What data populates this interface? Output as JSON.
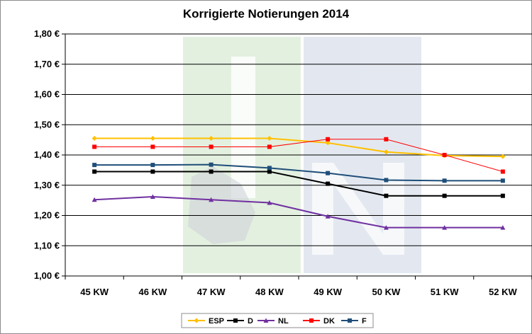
{
  "chart_data": {
    "type": "line",
    "title": "Korrigierte Notierungen 2014",
    "xlabel": "",
    "ylabel": "",
    "categories": [
      "45 KW",
      "46 KW",
      "47 KW",
      "48 KW",
      "49 KW",
      "50 KW",
      "51 KW",
      "52 KW"
    ],
    "ylim": [
      1.0,
      1.8
    ],
    "yticks": [
      1.0,
      1.1,
      1.2,
      1.3,
      1.4,
      1.5,
      1.6,
      1.7,
      1.8
    ],
    "ytick_labels": [
      "1,00 €",
      "1,10 €",
      "1,20 €",
      "1,30 €",
      "1,40 €",
      "1,50 €",
      "1,60 €",
      "1,70 €",
      "1,80 €"
    ],
    "grid": "horizontal",
    "legend_position": "bottom",
    "series": [
      {
        "name": "ESP",
        "color": "#ffc000",
        "marker": "diamond",
        "values": [
          1.455,
          1.455,
          1.455,
          1.455,
          1.44,
          1.41,
          1.398,
          1.395
        ]
      },
      {
        "name": "D",
        "color": "#000000",
        "marker": "square",
        "values": [
          1.345,
          1.345,
          1.345,
          1.345,
          1.305,
          1.265,
          1.265,
          1.265
        ]
      },
      {
        "name": "NL",
        "color": "#7030a0",
        "marker": "triangle",
        "values": [
          1.252,
          1.262,
          1.252,
          1.242,
          1.197,
          1.16,
          1.16,
          1.16
        ]
      },
      {
        "name": "DK",
        "color": "#ff0000",
        "marker": "square",
        "values": [
          1.427,
          1.427,
          1.427,
          1.427,
          1.452,
          1.452,
          1.4,
          1.345
        ]
      },
      {
        "name": "F",
        "color": "#1f4e79",
        "marker": "square",
        "values": [
          1.367,
          1.367,
          1.368,
          1.357,
          1.34,
          1.317,
          1.315,
          1.315
        ]
      }
    ]
  }
}
